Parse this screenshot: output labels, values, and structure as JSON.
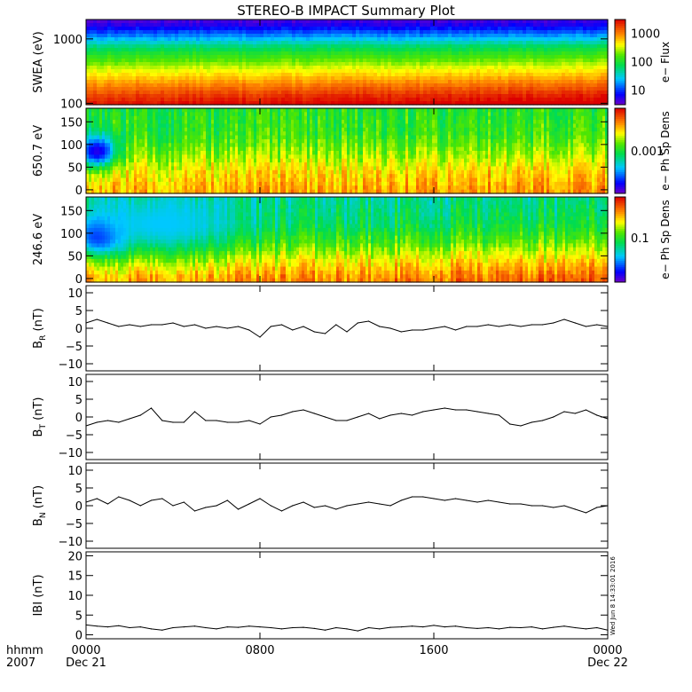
{
  "title": "STEREO-B IMPACT Summary Plot",
  "time_axis": {
    "row1_label": "hhmm",
    "row2_label": "2007",
    "ticks": [
      {
        "hours": 0,
        "label": "0000",
        "date": "Dec 21"
      },
      {
        "hours": 8,
        "label": "0800",
        "date": ""
      },
      {
        "hours": 16,
        "label": "1600",
        "date": ""
      },
      {
        "hours": 24,
        "label": "0000",
        "date": "Dec 22"
      }
    ]
  },
  "timestamp": "Wed Jun  8 14:33:01 2016",
  "colors": {
    "trace": "#000000",
    "axes": "#000000"
  },
  "chart_data": [
    {
      "type": "heatmap",
      "name": "swea",
      "ylabel": "SWEA (eV)",
      "yscale": "log",
      "ylim": [
        95,
        2000
      ],
      "yticks": [
        100,
        1000
      ],
      "ytick_labels": [
        "100",
        "1000"
      ],
      "colorbar": {
        "label": "e− Flux",
        "scale": "log",
        "range": [
          3,
          3000
        ],
        "ticks": [
          10,
          100,
          1000
        ],
        "tick_labels": [
          "10",
          "100",
          "1000"
        ]
      },
      "profile": [
        {
          "y": 1900,
          "c": 0.04
        },
        {
          "y": 1600,
          "c": 0.08
        },
        {
          "y": 1300,
          "c": 0.17
        },
        {
          "y": 1000,
          "c": 0.28
        },
        {
          "y": 800,
          "c": 0.4
        },
        {
          "y": 600,
          "c": 0.5
        },
        {
          "y": 450,
          "c": 0.58
        },
        {
          "y": 350,
          "c": 0.66
        },
        {
          "y": 250,
          "c": 0.75
        },
        {
          "y": 180,
          "c": 0.84
        },
        {
          "y": 130,
          "c": 0.92
        },
        {
          "y": 100,
          "c": 0.97
        }
      ],
      "trend": 0.05
    },
    {
      "type": "heatmap",
      "name": "pad650",
      "ylabel": "650.7 eV",
      "ylim": [
        -8,
        180
      ],
      "yticks": [
        0,
        50,
        100,
        150
      ],
      "ytick_labels": [
        "0",
        "50",
        "100",
        "150"
      ],
      "colorbar": {
        "label": "e− Ph Sp Dens",
        "scale": "log",
        "range": [
          0.0001,
          0.01
        ],
        "ticks": [
          0.001
        ],
        "tick_labels": [
          "0.001"
        ]
      },
      "profile": [
        {
          "y": 175,
          "c": 0.5
        },
        {
          "y": 120,
          "c": 0.52
        },
        {
          "y": 80,
          "c": 0.6
        },
        {
          "y": 40,
          "c": 0.7
        },
        {
          "y": 0,
          "c": 0.76
        }
      ],
      "trend": 0.06,
      "features": [
        {
          "hour": 0.5,
          "y": 85,
          "c": 0.08,
          "width_h": 0.9,
          "width_y": 35
        }
      ]
    },
    {
      "type": "heatmap",
      "name": "pad246",
      "ylabel": "246.6 eV",
      "ylim": [
        -8,
        180
      ],
      "yticks": [
        0,
        50,
        100,
        150
      ],
      "ytick_labels": [
        "0",
        "50",
        "100",
        "150"
      ],
      "colorbar": {
        "label": "e− Ph Sp Dens",
        "scale": "log",
        "range": [
          0.03,
          0.3
        ],
        "ticks": [
          0.1
        ],
        "tick_labels": [
          "0.1"
        ]
      },
      "profile": [
        {
          "y": 175,
          "c": 0.38
        },
        {
          "y": 120,
          "c": 0.42
        },
        {
          "y": 80,
          "c": 0.52
        },
        {
          "y": 40,
          "c": 0.66
        },
        {
          "y": 0,
          "c": 0.78
        }
      ],
      "trend": 0.1,
      "features": [
        {
          "hour": 0.6,
          "y": 95,
          "c": 0.1,
          "width_h": 1.2,
          "width_y": 40
        },
        {
          "hour": 3.5,
          "y": 120,
          "c": 0.3,
          "width_h": 3.5,
          "width_y": 60
        }
      ]
    },
    {
      "type": "line",
      "name": "br",
      "ylabel": "B_R (nT)",
      "ylabel_main": "B",
      "ylabel_sub": "R",
      "ylabel_unit": "(nT)",
      "ylim": [
        -12,
        12
      ],
      "yticks": [
        -10,
        -5,
        0,
        5,
        10
      ],
      "ytick_labels": [
        "−10",
        "−5",
        "0",
        "5",
        "10"
      ],
      "x": [
        0,
        0.5,
        1,
        1.5,
        2,
        2.5,
        3,
        3.5,
        4,
        4.5,
        5,
        5.5,
        6,
        6.5,
        7,
        7.5,
        8,
        8.5,
        9,
        9.5,
        10,
        10.5,
        11,
        11.5,
        12,
        12.5,
        13,
        13.5,
        14,
        14.5,
        15,
        15.5,
        16,
        16.5,
        17,
        17.5,
        18,
        18.5,
        19,
        19.5,
        20,
        20.5,
        21,
        21.5,
        22,
        22.5,
        23,
        23.5,
        24
      ],
      "y": [
        1.5,
        2.5,
        1.5,
        0.5,
        1.0,
        0.5,
        1.0,
        1.0,
        1.5,
        0.5,
        1.0,
        0.0,
        0.5,
        0.0,
        0.5,
        -0.5,
        -2.5,
        0.5,
        1.0,
        -0.5,
        0.5,
        -1.0,
        -1.5,
        1.0,
        -1.0,
        1.5,
        2.0,
        0.5,
        0.0,
        -1.0,
        -0.5,
        -0.5,
        0.0,
        0.5,
        -0.5,
        0.5,
        0.5,
        1.0,
        0.5,
        1.0,
        0.5,
        1.0,
        1.0,
        1.5,
        2.5,
        1.5,
        0.5,
        1.0,
        0.5
      ]
    },
    {
      "type": "line",
      "name": "bt",
      "ylabel": "B_T (nT)",
      "ylabel_main": "B",
      "ylabel_sub": "T",
      "ylabel_unit": "(nT)",
      "ylim": [
        -12,
        12
      ],
      "yticks": [
        -10,
        -5,
        0,
        5,
        10
      ],
      "ytick_labels": [
        "−10",
        "−5",
        "0",
        "5",
        "10"
      ],
      "x": [
        0,
        0.5,
        1,
        1.5,
        2,
        2.5,
        3,
        3.5,
        4,
        4.5,
        5,
        5.5,
        6,
        6.5,
        7,
        7.5,
        8,
        8.5,
        9,
        9.5,
        10,
        10.5,
        11,
        11.5,
        12,
        12.5,
        13,
        13.5,
        14,
        14.5,
        15,
        15.5,
        16,
        16.5,
        17,
        17.5,
        18,
        18.5,
        19,
        19.5,
        20,
        20.5,
        21,
        21.5,
        22,
        22.5,
        23,
        23.5,
        24
      ],
      "y": [
        -2.5,
        -1.5,
        -1.0,
        -1.5,
        -0.5,
        0.5,
        2.5,
        -1.0,
        -1.5,
        -1.5,
        1.5,
        -1.0,
        -1.0,
        -1.5,
        -1.5,
        -1.0,
        -2.0,
        0.0,
        0.5,
        1.5,
        2.0,
        1.0,
        0.0,
        -1.0,
        -1.0,
        0.0,
        1.0,
        -0.5,
        0.5,
        1.0,
        0.5,
        1.5,
        2.0,
        2.5,
        2.0,
        2.0,
        1.5,
        1.0,
        0.5,
        -2.0,
        -2.5,
        -1.5,
        -1.0,
        0.0,
        1.5,
        1.0,
        2.0,
        0.5,
        -0.5
      ]
    },
    {
      "type": "line",
      "name": "bn",
      "ylabel": "B_N (nT)",
      "ylabel_main": "B",
      "ylabel_sub": "N",
      "ylabel_unit": "(nT)",
      "ylim": [
        -12,
        12
      ],
      "yticks": [
        -10,
        -5,
        0,
        5,
        10
      ],
      "ytick_labels": [
        "−10",
        "−5",
        "0",
        "5",
        "10"
      ],
      "x": [
        0,
        0.5,
        1,
        1.5,
        2,
        2.5,
        3,
        3.5,
        4,
        4.5,
        5,
        5.5,
        6,
        6.5,
        7,
        7.5,
        8,
        8.5,
        9,
        9.5,
        10,
        10.5,
        11,
        11.5,
        12,
        12.5,
        13,
        13.5,
        14,
        14.5,
        15,
        15.5,
        16,
        16.5,
        17,
        17.5,
        18,
        18.5,
        19,
        19.5,
        20,
        20.5,
        21,
        21.5,
        22,
        22.5,
        23,
        23.5,
        24
      ],
      "y": [
        1.0,
        2.0,
        0.5,
        2.5,
        1.5,
        0.0,
        1.5,
        2.0,
        0.0,
        1.0,
        -1.5,
        -0.5,
        0.0,
        1.5,
        -1.0,
        0.5,
        2.0,
        0.0,
        -1.5,
        0.0,
        1.0,
        -0.5,
        0.0,
        -1.0,
        0.0,
        0.5,
        1.0,
        0.5,
        0.0,
        1.5,
        2.5,
        2.5,
        2.0,
        1.5,
        2.0,
        1.5,
        1.0,
        1.5,
        1.0,
        0.5,
        0.5,
        0.0,
        0.0,
        -0.5,
        0.0,
        -1.0,
        -2.0,
        -0.5,
        0.0
      ]
    },
    {
      "type": "line",
      "name": "bmag",
      "ylabel": "|B| (nT)",
      "ylabel_main": "IBI",
      "ylabel_sub": "",
      "ylabel_unit": "(nT)",
      "ylim": [
        -1,
        21
      ],
      "yticks": [
        0,
        5,
        10,
        15,
        20
      ],
      "ytick_labels": [
        "0",
        "5",
        "10",
        "15",
        "20"
      ],
      "x": [
        0,
        0.5,
        1,
        1.5,
        2,
        2.5,
        3,
        3.5,
        4,
        4.5,
        5,
        5.5,
        6,
        6.5,
        7,
        7.5,
        8,
        8.5,
        9,
        9.5,
        10,
        10.5,
        11,
        11.5,
        12,
        12.5,
        13,
        13.5,
        14,
        14.5,
        15,
        15.5,
        16,
        16.5,
        17,
        17.5,
        18,
        18.5,
        19,
        19.5,
        20,
        20.5,
        21,
        21.5,
        22,
        22.5,
        23,
        23.5,
        24
      ],
      "y": [
        2.5,
        2.2,
        2.0,
        2.3,
        1.8,
        2.0,
        1.5,
        1.2,
        1.8,
        2.0,
        2.2,
        1.8,
        1.5,
        2.0,
        1.9,
        2.2,
        2.0,
        1.8,
        1.5,
        1.8,
        1.9,
        1.6,
        1.2,
        1.8,
        1.5,
        1.0,
        1.8,
        1.5,
        1.9,
        2.0,
        2.2,
        2.0,
        2.4,
        2.0,
        2.2,
        1.8,
        1.6,
        1.8,
        1.5,
        1.9,
        1.8,
        2.0,
        1.5,
        1.9,
        2.2,
        1.8,
        1.5,
        1.8,
        1.2
      ]
    }
  ]
}
